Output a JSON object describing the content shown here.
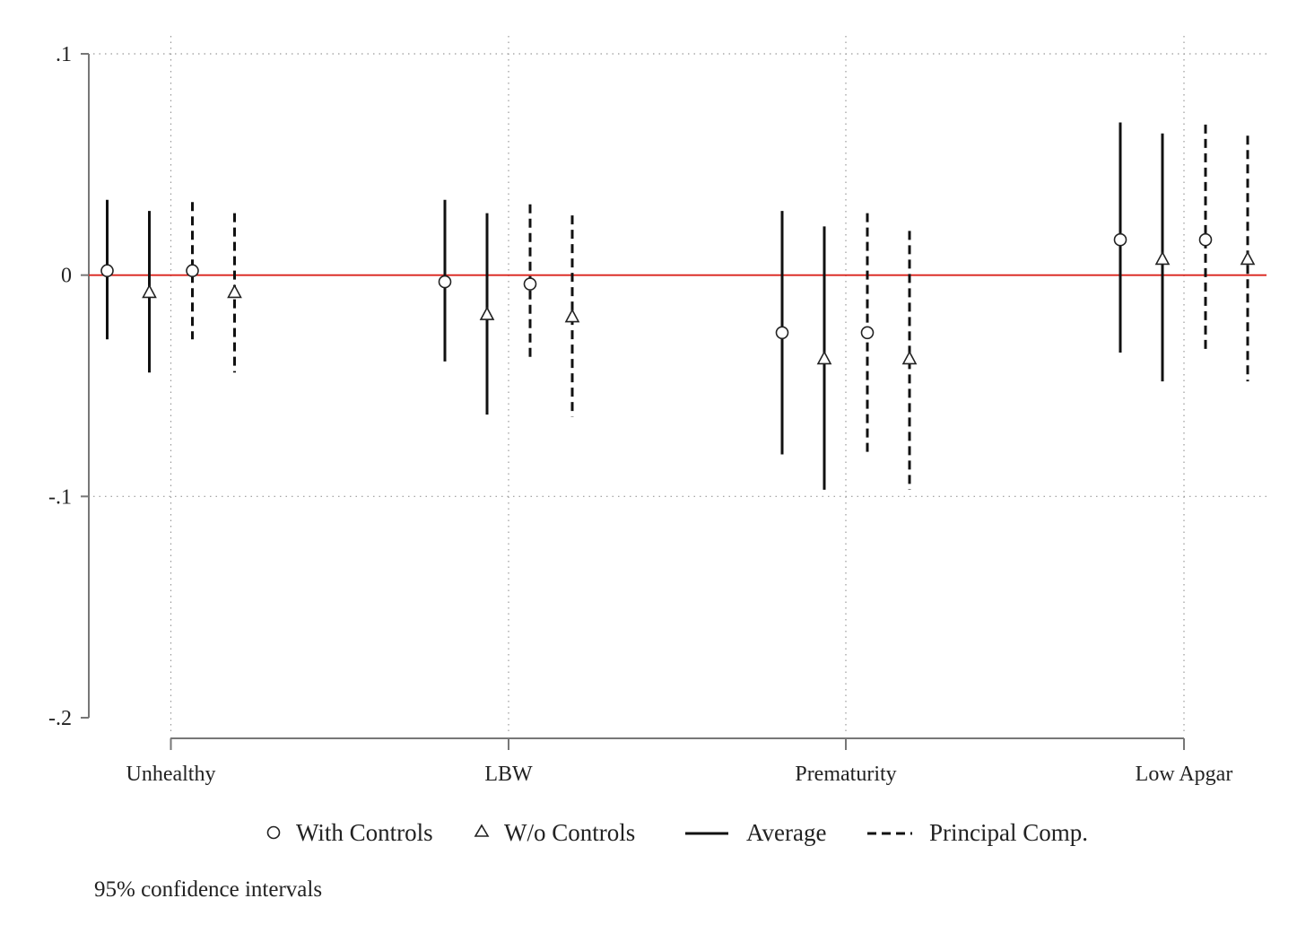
{
  "chart_data": {
    "type": "scatter",
    "title": "",
    "xlabel": "",
    "ylabel": "",
    "ylim": [
      -0.2,
      0.1
    ],
    "yticks": [
      {
        "value": 0.1,
        "label": ".1"
      },
      {
        "value": 0,
        "label": "0"
      },
      {
        "value": -0.1,
        "label": "-.1"
      },
      {
        "value": -0.2,
        "label": "-.2"
      }
    ],
    "categories": [
      "Unhealthy",
      "LBW",
      "Prematurity",
      "Low Apgar"
    ],
    "reference_line": {
      "y": 0,
      "color": "#d9231c"
    },
    "grid": true,
    "series": [
      {
        "name": "With Controls / Average",
        "marker": "circle",
        "line": "solid",
        "points": [
          {
            "category": "Unhealthy",
            "estimate": 0.002,
            "ci": [
              -0.029,
              0.034
            ]
          },
          {
            "category": "LBW",
            "estimate": -0.003,
            "ci": [
              -0.039,
              0.034
            ]
          },
          {
            "category": "Prematurity",
            "estimate": -0.026,
            "ci": [
              -0.081,
              0.029
            ]
          },
          {
            "category": "Low Apgar",
            "estimate": 0.016,
            "ci": [
              -0.035,
              0.069
            ]
          }
        ]
      },
      {
        "name": "W/o Controls / Average",
        "marker": "triangle",
        "line": "solid",
        "points": [
          {
            "category": "Unhealthy",
            "estimate": -0.008,
            "ci": [
              -0.044,
              0.029
            ]
          },
          {
            "category": "LBW",
            "estimate": -0.018,
            "ci": [
              -0.063,
              0.028
            ]
          },
          {
            "category": "Prematurity",
            "estimate": -0.038,
            "ci": [
              -0.097,
              0.022
            ]
          },
          {
            "category": "Low Apgar",
            "estimate": 0.007,
            "ci": [
              -0.048,
              0.064
            ]
          }
        ]
      },
      {
        "name": "With Controls / Principal Comp.",
        "marker": "circle",
        "line": "dashed",
        "points": [
          {
            "category": "Unhealthy",
            "estimate": 0.002,
            "ci": [
              -0.029,
              0.033
            ]
          },
          {
            "category": "LBW",
            "estimate": -0.004,
            "ci": [
              -0.039,
              0.032
            ]
          },
          {
            "category": "Prematurity",
            "estimate": -0.026,
            "ci": [
              -0.08,
              0.028
            ]
          },
          {
            "category": "Low Apgar",
            "estimate": 0.016,
            "ci": [
              -0.035,
              0.068
            ]
          }
        ]
      },
      {
        "name": "W/o Controls / Principal Comp.",
        "marker": "triangle",
        "line": "dashed",
        "points": [
          {
            "category": "Unhealthy",
            "estimate": -0.008,
            "ci": [
              -0.044,
              0.028
            ]
          },
          {
            "category": "LBW",
            "estimate": -0.019,
            "ci": [
              -0.064,
              0.027
            ]
          },
          {
            "category": "Prematurity",
            "estimate": -0.038,
            "ci": [
              -0.097,
              0.02
            ]
          },
          {
            "category": "Low Apgar",
            "estimate": 0.007,
            "ci": [
              -0.048,
              0.063
            ]
          }
        ]
      }
    ],
    "legend": {
      "placement": "bottom",
      "items": [
        {
          "label": "With Controls",
          "symbol": "circle"
        },
        {
          "label": "W/o Controls",
          "symbol": "triangle"
        },
        {
          "label": "Average",
          "symbol": "solid-line"
        },
        {
          "label": "Principal Comp.",
          "symbol": "dashed-line"
        }
      ]
    },
    "note": "95% confidence intervals"
  }
}
